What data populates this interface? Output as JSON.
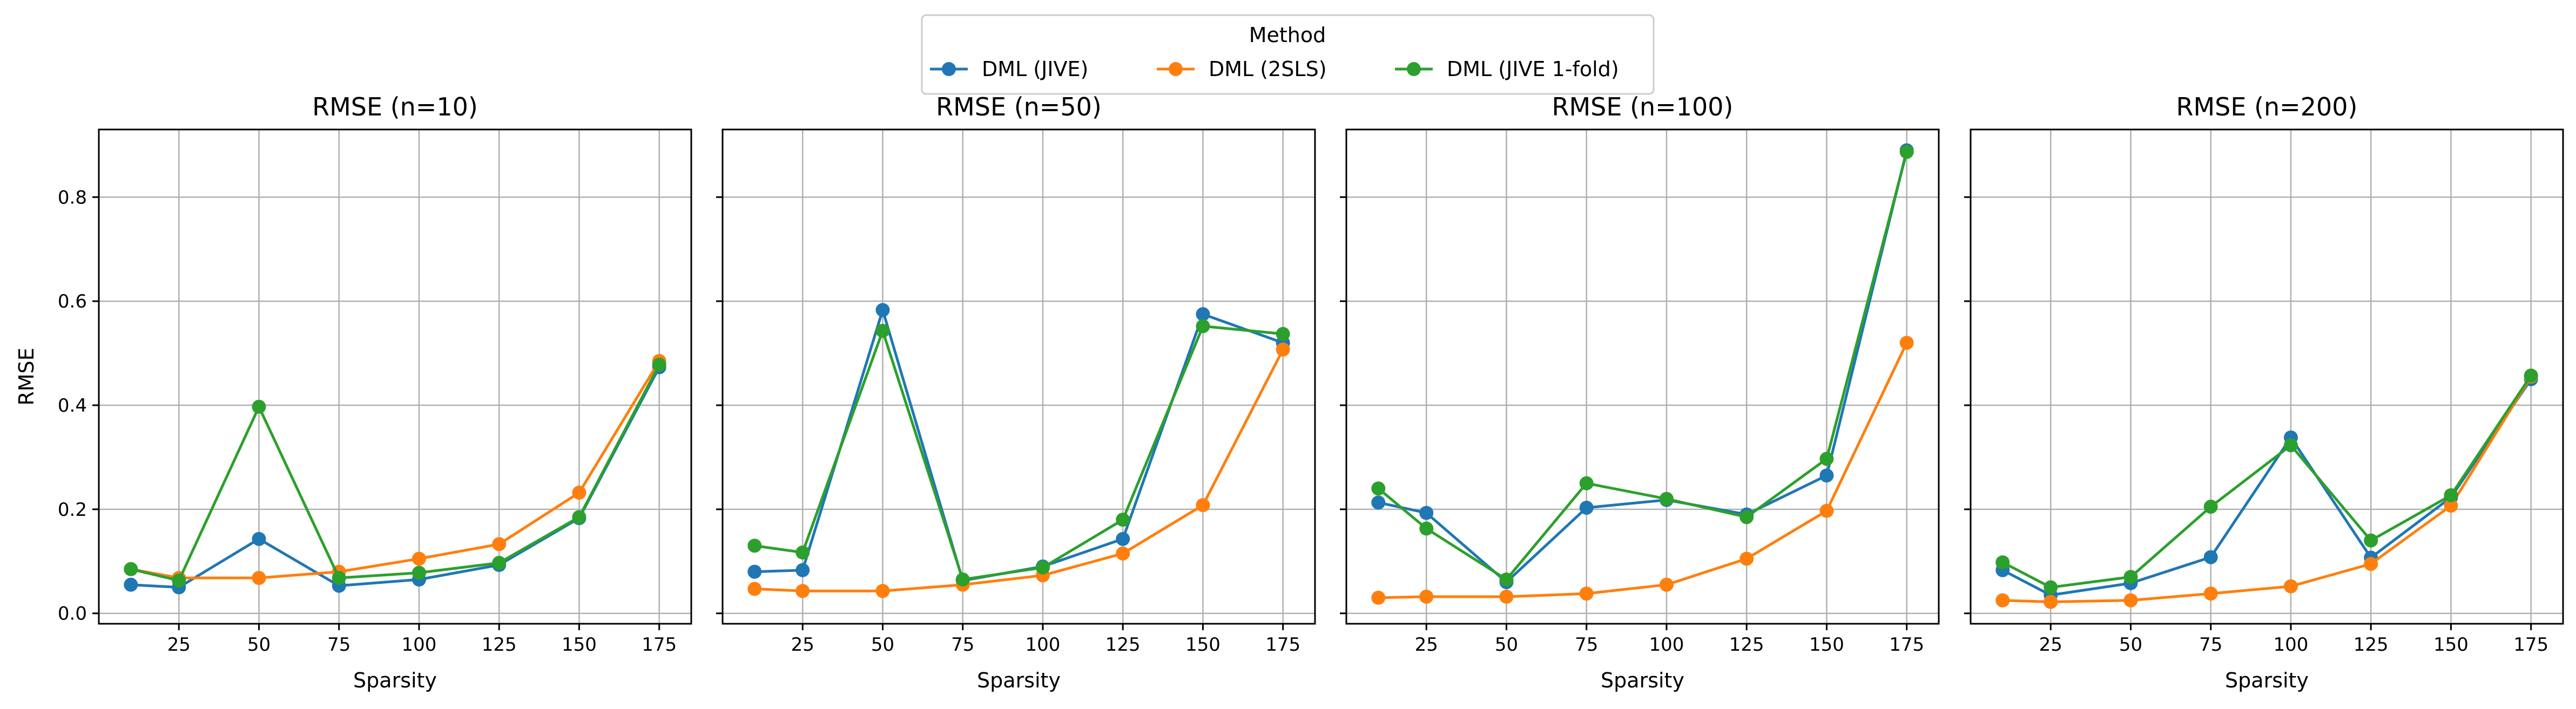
{
  "legend": {
    "title": "Method",
    "entries": [
      {
        "name": "DML (JIVE)",
        "color": "#1f77b4"
      },
      {
        "name": "DML (2SLS)",
        "color": "#ff7f0e"
      },
      {
        "name": "DML (JIVE 1-fold)",
        "color": "#2ca02c"
      }
    ],
    "placement": "top-center"
  },
  "shared": {
    "ylabel": "RMSE",
    "xlabel": "Sparsity",
    "xticks": [
      25,
      50,
      75,
      100,
      125,
      150,
      175
    ],
    "yticks": [
      0.0,
      0.2,
      0.4,
      0.6,
      0.8
    ],
    "ytick_labels": [
      "0.0",
      "0.2",
      "0.4",
      "0.6",
      "0.8"
    ],
    "xlim": [
      0,
      185
    ],
    "ylim": [
      -0.02,
      0.93
    ],
    "grid": true
  },
  "chart_data": [
    {
      "type": "line",
      "title": "RMSE (n=10)",
      "xlabel": "Sparsity",
      "ylabel": "RMSE",
      "x": [
        10,
        25,
        50,
        75,
        100,
        125,
        150,
        175
      ],
      "series": [
        {
          "name": "DML (JIVE)",
          "values": [
            0.055,
            0.05,
            0.143,
            0.053,
            0.065,
            0.093,
            0.183,
            0.473
          ]
        },
        {
          "name": "DML (2SLS)",
          "values": [
            0.085,
            0.068,
            0.068,
            0.08,
            0.105,
            0.133,
            0.232,
            0.485
          ]
        },
        {
          "name": "DML (JIVE 1-fold)",
          "values": [
            0.085,
            0.063,
            0.397,
            0.068,
            0.078,
            0.097,
            0.185,
            0.478
          ]
        }
      ]
    },
    {
      "type": "line",
      "title": "RMSE (n=50)",
      "xlabel": "Sparsity",
      "x": [
        10,
        25,
        50,
        75,
        100,
        125,
        150,
        175
      ],
      "series": [
        {
          "name": "DML (JIVE)",
          "values": [
            0.08,
            0.083,
            0.583,
            0.063,
            0.09,
            0.143,
            0.575,
            0.52
          ]
        },
        {
          "name": "DML (2SLS)",
          "values": [
            0.047,
            0.043,
            0.043,
            0.055,
            0.073,
            0.115,
            0.208,
            0.507
          ]
        },
        {
          "name": "DML (JIVE 1-fold)",
          "values": [
            0.13,
            0.117,
            0.543,
            0.065,
            0.088,
            0.18,
            0.552,
            0.537
          ]
        }
      ]
    },
    {
      "type": "line",
      "title": "RMSE (n=100)",
      "xlabel": "Sparsity",
      "x": [
        10,
        25,
        50,
        75,
        100,
        125,
        150,
        175
      ],
      "series": [
        {
          "name": "DML (JIVE)",
          "values": [
            0.213,
            0.193,
            0.06,
            0.203,
            0.218,
            0.19,
            0.265,
            0.89
          ]
        },
        {
          "name": "DML (2SLS)",
          "values": [
            0.03,
            0.032,
            0.032,
            0.038,
            0.055,
            0.105,
            0.197,
            0.52
          ]
        },
        {
          "name": "DML (JIVE 1-fold)",
          "values": [
            0.24,
            0.163,
            0.065,
            0.25,
            0.22,
            0.185,
            0.297,
            0.887
          ]
        }
      ]
    },
    {
      "type": "line",
      "title": "RMSE (n=200)",
      "xlabel": "Sparsity",
      "x": [
        10,
        25,
        50,
        75,
        100,
        125,
        150,
        175
      ],
      "series": [
        {
          "name": "DML (JIVE)",
          "values": [
            0.083,
            0.035,
            0.058,
            0.108,
            0.338,
            0.107,
            0.223,
            0.45
          ]
        },
        {
          "name": "DML (2SLS)",
          "values": [
            0.025,
            0.022,
            0.025,
            0.038,
            0.052,
            0.095,
            0.207,
            0.455
          ]
        },
        {
          "name": "DML (JIVE 1-fold)",
          "values": [
            0.098,
            0.05,
            0.07,
            0.205,
            0.323,
            0.14,
            0.227,
            0.457
          ]
        }
      ]
    }
  ]
}
